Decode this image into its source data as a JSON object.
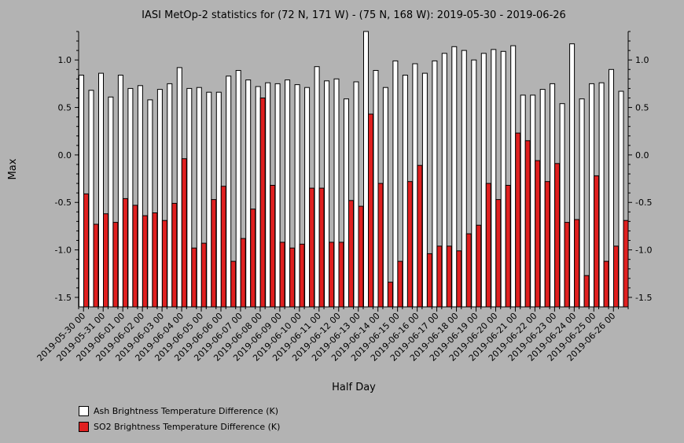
{
  "chart_data": {
    "type": "bar",
    "title": "IASI MetOp-2 statistics for (72 N, 171 W) - (75 N, 168 W): 2019-05-30 - 2019-06-26",
    "xlabel": "Half Day",
    "ylabel": "Max",
    "ylim": [
      -1.6,
      1.3
    ],
    "yticks": [
      1.0,
      0.5,
      0.0,
      -0.5,
      -1.0,
      -1.5
    ],
    "ytick_labels": [
      "1.0",
      "0.5",
      "0.0",
      "-0.5",
      "-1.0",
      "-1.5"
    ],
    "x_tick_labels": [
      "2019-05-30 00",
      "2019-05-31 00",
      "2019-06-01 00",
      "2019-06-02 00",
      "2019-06-03 00",
      "2019-06-04 00",
      "2019-06-05 00",
      "2019-06-06 00",
      "2019-06-07 00",
      "2019-06-08 00",
      "2019-06-09 00",
      "2019-06-10 00",
      "2019-06-11 00",
      "2019-06-12 00",
      "2019-06-13 00",
      "2019-06-14 00",
      "2019-06-15 00",
      "2019-06-16 00",
      "2019-06-17 00",
      "2019-06-18 00",
      "2019-06-19 00",
      "2019-06-20 00",
      "2019-06-21 00",
      "2019-06-22 00",
      "2019-06-23 00",
      "2019-06-24 00",
      "2019-06-25 00",
      "2019-06-26 00"
    ],
    "legend_position": "bottom-left",
    "grid": false,
    "series": [
      {
        "name": "Ash Brightness Temperature Difference (K)",
        "color": "#ffffff",
        "values": [
          0.84,
          0.68,
          0.86,
          0.61,
          0.84,
          0.7,
          0.73,
          0.58,
          0.69,
          0.75,
          0.92,
          0.7,
          0.71,
          0.66,
          0.66,
          0.83,
          0.89,
          0.79,
          0.72,
          0.76,
          0.75,
          0.79,
          0.74,
          0.71,
          0.93,
          0.78,
          0.8,
          0.59,
          0.77,
          1.32,
          0.89,
          0.71,
          0.99,
          0.84,
          0.96,
          0.86,
          0.99,
          1.07,
          1.14,
          1.1,
          1.0,
          1.07,
          1.11,
          1.09,
          1.15,
          0.63,
          0.63,
          0.69,
          0.75,
          0.54,
          1.17,
          0.59,
          0.75,
          0.76,
          0.9,
          0.67
        ]
      },
      {
        "name": "SO2 Brightness Temperature Difference (K)",
        "color": "#e02020",
        "values": [
          -0.41,
          -0.73,
          -0.62,
          -0.71,
          -0.46,
          -0.53,
          -0.64,
          -0.61,
          -0.69,
          -0.51,
          -0.04,
          -0.98,
          -0.93,
          -0.47,
          -0.33,
          -1.12,
          -0.88,
          -0.57,
          0.6,
          -0.32,
          -0.92,
          -0.98,
          -0.94,
          -0.35,
          -0.35,
          -0.92,
          -0.92,
          -0.48,
          -0.54,
          0.43,
          -0.3,
          -1.34,
          -1.12,
          -0.28,
          -0.11,
          -1.04,
          -0.96,
          -0.96,
          -1.01,
          -0.83,
          -0.74,
          -0.3,
          -0.47,
          -0.32,
          0.23,
          0.15,
          -0.06,
          -0.28,
          -0.09,
          -0.71,
          -0.68,
          -1.27,
          -0.22,
          -1.12,
          -0.96,
          -0.69
        ]
      }
    ]
  }
}
